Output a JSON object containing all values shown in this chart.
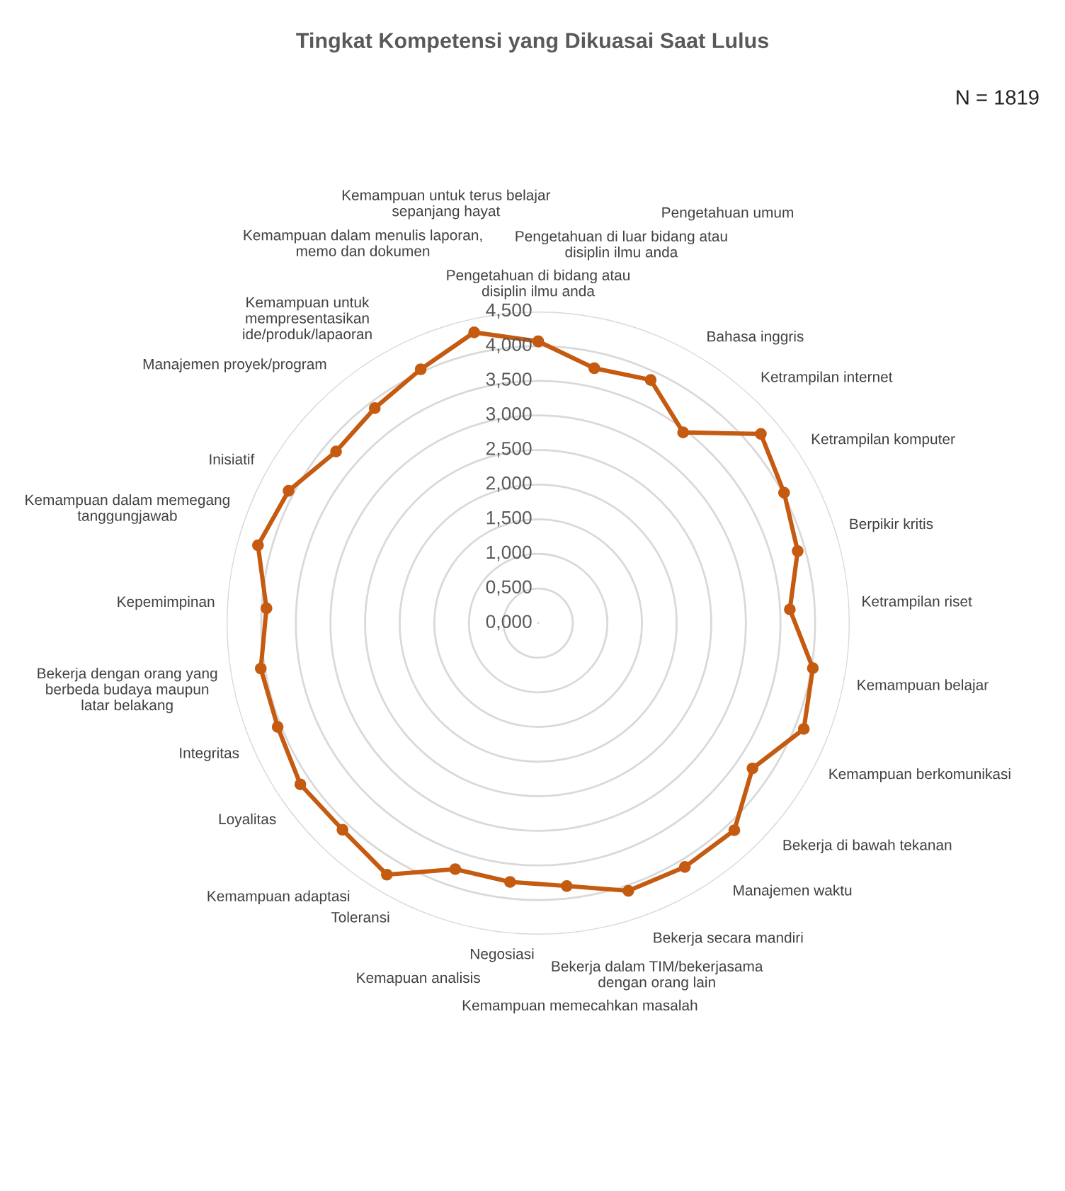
{
  "chart_data": {
    "type": "radar",
    "title": "Tingkat Kompetensi yang Dikuasai Saat Lulus",
    "annotations": [
      "N = 1819"
    ],
    "categories": [
      "Pengetahuan di bidang atau disiplin ilmu anda",
      "Pengetahuan di luar bidang atau disiplin ilmu anda",
      "Pengetahuan umum",
      "Bahasa inggris",
      "Ketrampilan internet",
      "Ketrampilan komputer",
      "Berpikir kritis",
      "Ketrampilan riset",
      "Kemampuan belajar",
      "Kemampuan berkomunikasi",
      "Bekerja di bawah tekanan",
      "Manajemen waktu",
      "Bekerja secara mandiri",
      "Bekerja dalam TIM/bekerjasama dengan orang lain",
      "Kemampuan memecahkan masalah",
      "Negosiasi",
      "Kemapuan analisis",
      "Toleransi",
      "Kemampuan adaptasi",
      "Loyalitas",
      "Integritas",
      "Bekerja dengan orang yang berbeda budaya maupun latar belakang",
      "Kepemimpinan",
      "Kemampuan dalam memegang tanggungjawab",
      "Inisiatif",
      "Manajemen proyek/program",
      "Kemampuan untuk mempresentasikan ide/produk/lapaoran",
      "Kemampuan dalam menulis laporan, memo dan dokumen",
      "Kemampuan untuk terus belajar sepanjang hayat"
    ],
    "series": [
      {
        "color": "#c55a11",
        "values": [
          4.07,
          3.77,
          3.87,
          3.46,
          4.22,
          4.02,
          3.89,
          3.64,
          4.02,
          4.13,
          3.74,
          4.12,
          4.11,
          4.08,
          3.82,
          3.76,
          3.75,
          4.24,
          4.11,
          4.15,
          4.05,
          4.06,
          3.93,
          4.2,
          4.08,
          3.83,
          3.9,
          4.04,
          4.3
        ]
      }
    ],
    "ylim": [
      0,
      4.5
    ],
    "yticks": [
      {
        "value": 0,
        "label": "0,000"
      },
      {
        "value": 0.5,
        "label": "0,500"
      },
      {
        "value": 1,
        "label": "1,000"
      },
      {
        "value": 1.5,
        "label": "1,500"
      },
      {
        "value": 2,
        "label": "2,000"
      },
      {
        "value": 2.5,
        "label": "2,500"
      },
      {
        "value": 3,
        "label": "3,000"
      },
      {
        "value": 3.5,
        "label": "3,500"
      },
      {
        "value": 4,
        "label": "4,000"
      },
      {
        "value": 4.5,
        "label": "4,500"
      }
    ],
    "grid": "y",
    "marker": "circle",
    "line_style": "solid"
  }
}
